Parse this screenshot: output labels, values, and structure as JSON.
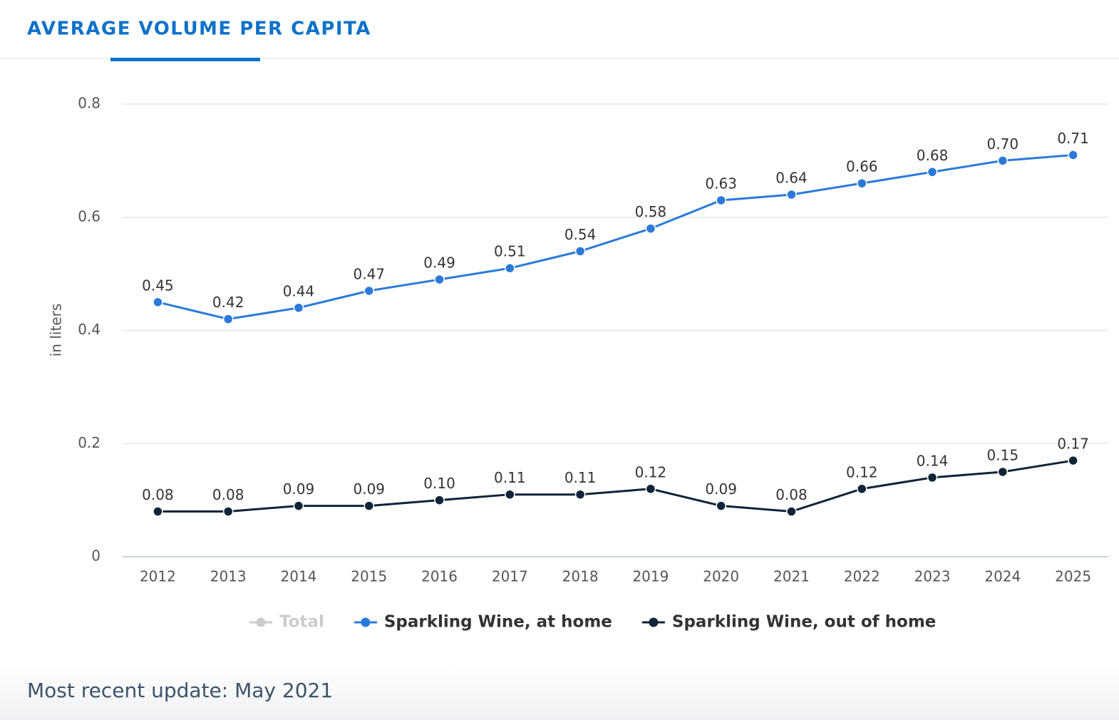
{
  "tab": "AVERAGE VOLUME PER CAPITA",
  "footer": "Most recent update: May 2021",
  "chart_data": {
    "type": "line",
    "y_axis_label": "in liters",
    "categories": [
      "2012",
      "2013",
      "2014",
      "2015",
      "2016",
      "2017",
      "2018",
      "2019",
      "2020",
      "2021",
      "2022",
      "2023",
      "2024",
      "2025"
    ],
    "series": [
      {
        "name": "Total",
        "color": "#cccccc",
        "hidden": true,
        "values": [
          null,
          null,
          null,
          null,
          null,
          null,
          null,
          null,
          null,
          null,
          null,
          null,
          null,
          null
        ]
      },
      {
        "name": "Sparkling Wine, at home",
        "color": "#2a7ad9",
        "values": [
          0.45,
          0.42,
          0.44,
          0.47,
          0.49,
          0.51,
          0.54,
          0.58,
          0.63,
          0.64,
          0.66,
          0.68,
          0.7,
          0.71
        ],
        "value_labels": [
          "0.45",
          "0.42",
          "0.44",
          "0.47",
          "0.49",
          "0.51",
          "0.54",
          "0.58",
          "0.63",
          "0.64",
          "0.66",
          "0.68",
          "0.70",
          "0.71"
        ]
      },
      {
        "name": "Sparkling Wine, out of home",
        "color": "#0f2437",
        "values": [
          0.08,
          0.08,
          0.09,
          0.09,
          0.1,
          0.11,
          0.11,
          0.12,
          0.09,
          0.08,
          0.12,
          0.14,
          0.15,
          0.17
        ],
        "value_labels": [
          "0.08",
          "0.08",
          "0.09",
          "0.09",
          "0.10",
          "0.11",
          "0.11",
          "0.12",
          "0.09",
          "0.08",
          "0.12",
          "0.14",
          "0.15",
          "0.17"
        ]
      }
    ],
    "ylim": [
      0,
      0.8
    ],
    "yticks": [
      0,
      0.2,
      0.4,
      0.6,
      0.8
    ],
    "grid": true,
    "legend": "bottom"
  }
}
